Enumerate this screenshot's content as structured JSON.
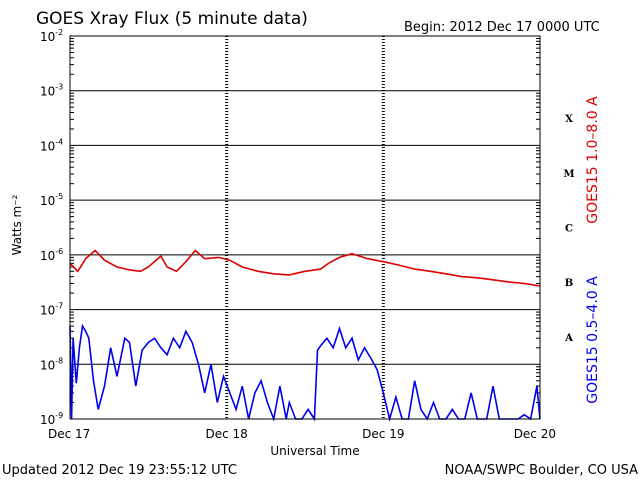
{
  "header": {
    "title": "GOES Xray Flux (5 minute data)",
    "begin": "Begin:  2012 Dec 17 0000 UTC"
  },
  "footer": {
    "updated": "Updated 2012 Dec 19 23:55:12 UTC",
    "credit": "NOAA/SWPC Boulder, CO USA"
  },
  "chart_data": {
    "type": "line",
    "title": "GOES Xray Flux (5 minute data)",
    "xlabel": "Universal Time",
    "ylabel": "Watts m⁻²",
    "yscale": "log",
    "ylim": [
      1e-09,
      0.01
    ],
    "y_ticks": [
      {
        "base": "10",
        "exp": "-2",
        "value": 0.01
      },
      {
        "base": "10",
        "exp": "-3",
        "value": 0.001
      },
      {
        "base": "10",
        "exp": "-4",
        "value": 0.0001
      },
      {
        "base": "10",
        "exp": "-5",
        "value": 1e-05
      },
      {
        "base": "10",
        "exp": "-6",
        "value": 1e-06
      },
      {
        "base": "10",
        "exp": "-7",
        "value": 1e-07
      },
      {
        "base": "10",
        "exp": "-8",
        "value": 1e-08
      },
      {
        "base": "10",
        "exp": "-9",
        "value": 1e-09
      }
    ],
    "x_ticks": [
      "Dec 17",
      "Dec 18",
      "Dec 19",
      "Dec 20"
    ],
    "xlim_days": [
      0,
      3
    ],
    "flare_classes": [
      {
        "label": "X",
        "value": 0.0001
      },
      {
        "label": "M",
        "value": 1e-05
      },
      {
        "label": "C",
        "value": 1e-06
      },
      {
        "label": "B",
        "value": 1e-07
      },
      {
        "label": "A",
        "value": 1e-08
      }
    ],
    "grid": true,
    "series": [
      {
        "name": "GOES15 1.0–8.0 A",
        "color": "#dd0000",
        "points": [
          [
            0.0,
            7e-07
          ],
          [
            0.05,
            5e-07
          ],
          [
            0.1,
            8.5e-07
          ],
          [
            0.16,
            1.2e-06
          ],
          [
            0.22,
            8e-07
          ],
          [
            0.3,
            6e-07
          ],
          [
            0.38,
            5.3e-07
          ],
          [
            0.45,
            5e-07
          ],
          [
            0.5,
            6e-07
          ],
          [
            0.58,
            9.5e-07
          ],
          [
            0.62,
            6e-07
          ],
          [
            0.68,
            5e-07
          ],
          [
            0.74,
            7.5e-07
          ],
          [
            0.8,
            1.2e-06
          ],
          [
            0.86,
            8.5e-07
          ],
          [
            0.95,
            9e-07
          ],
          [
            1.02,
            8e-07
          ],
          [
            1.1,
            6e-07
          ],
          [
            1.2,
            5e-07
          ],
          [
            1.3,
            4.5e-07
          ],
          [
            1.4,
            4.3e-07
          ],
          [
            1.5,
            5e-07
          ],
          [
            1.6,
            5.5e-07
          ],
          [
            1.65,
            7e-07
          ],
          [
            1.72,
            9e-07
          ],
          [
            1.8,
            1.05e-06
          ],
          [
            1.9,
            8.5e-07
          ],
          [
            2.0,
            7.5e-07
          ],
          [
            2.1,
            6.5e-07
          ],
          [
            2.2,
            5.5e-07
          ],
          [
            2.3,
            5e-07
          ],
          [
            2.4,
            4.5e-07
          ],
          [
            2.5,
            4e-07
          ],
          [
            2.6,
            3.8e-07
          ],
          [
            2.7,
            3.5e-07
          ],
          [
            2.8,
            3.2e-07
          ],
          [
            2.9,
            3e-07
          ],
          [
            3.0,
            2.7e-07
          ]
        ]
      },
      {
        "name": "GOES15 0.5–4.0 A",
        "color": "#0000ee",
        "points": [
          [
            0.0,
            5e-08
          ],
          [
            0.01,
            1e-09
          ],
          [
            0.02,
            3e-08
          ],
          [
            0.04,
            4.5e-09
          ],
          [
            0.06,
            2e-08
          ],
          [
            0.08,
            5e-08
          ],
          [
            0.1,
            4e-08
          ],
          [
            0.12,
            3e-08
          ],
          [
            0.15,
            5e-09
          ],
          [
            0.18,
            1.5e-09
          ],
          [
            0.22,
            4e-09
          ],
          [
            0.26,
            2e-08
          ],
          [
            0.3,
            6e-09
          ],
          [
            0.35,
            3e-08
          ],
          [
            0.38,
            2.5e-08
          ],
          [
            0.42,
            4e-09
          ],
          [
            0.46,
            1.8e-08
          ],
          [
            0.5,
            2.5e-08
          ],
          [
            0.54,
            3e-08
          ],
          [
            0.58,
            2e-08
          ],
          [
            0.62,
            1.5e-08
          ],
          [
            0.66,
            3e-08
          ],
          [
            0.7,
            2e-08
          ],
          [
            0.74,
            4e-08
          ],
          [
            0.78,
            2.5e-08
          ],
          [
            0.82,
            1e-08
          ],
          [
            0.86,
            3e-09
          ],
          [
            0.9,
            1e-08
          ],
          [
            0.94,
            2e-09
          ],
          [
            0.98,
            6e-09
          ],
          [
            1.02,
            3e-09
          ],
          [
            1.06,
            1.5e-09
          ],
          [
            1.1,
            4e-09
          ],
          [
            1.14,
            1e-09
          ],
          [
            1.18,
            3e-09
          ],
          [
            1.22,
            5e-09
          ],
          [
            1.26,
            2e-09
          ],
          [
            1.3,
            1e-09
          ],
          [
            1.34,
            4e-09
          ],
          [
            1.38,
            1e-09
          ],
          [
            1.4,
            2e-09
          ],
          [
            1.44,
            1e-09
          ],
          [
            1.48,
            1e-09
          ],
          [
            1.52,
            1.5e-09
          ],
          [
            1.56,
            1e-09
          ],
          [
            1.58,
            1.8e-08
          ],
          [
            1.6,
            2.2e-08
          ],
          [
            1.64,
            3e-08
          ],
          [
            1.68,
            2e-08
          ],
          [
            1.72,
            4.5e-08
          ],
          [
            1.76,
            2e-08
          ],
          [
            1.8,
            3e-08
          ],
          [
            1.84,
            1.2e-08
          ],
          [
            1.88,
            2e-08
          ],
          [
            1.92,
            1.3e-08
          ],
          [
            1.96,
            8e-09
          ],
          [
            2.0,
            3e-09
          ],
          [
            2.04,
            1e-09
          ],
          [
            2.08,
            2.5e-09
          ],
          [
            2.12,
            1e-09
          ],
          [
            2.16,
            1e-09
          ],
          [
            2.2,
            5e-09
          ],
          [
            2.24,
            1.5e-09
          ],
          [
            2.28,
            1e-09
          ],
          [
            2.32,
            2e-09
          ],
          [
            2.36,
            1e-09
          ],
          [
            2.4,
            1e-09
          ],
          [
            2.44,
            1.5e-09
          ],
          [
            2.48,
            1e-09
          ],
          [
            2.52,
            1e-09
          ],
          [
            2.56,
            3e-09
          ],
          [
            2.6,
            1e-09
          ],
          [
            2.66,
            1e-09
          ],
          [
            2.7,
            4e-09
          ],
          [
            2.74,
            1e-09
          ],
          [
            2.8,
            1e-09
          ],
          [
            2.86,
            1e-09
          ],
          [
            2.9,
            1.2e-09
          ],
          [
            2.94,
            1e-09
          ],
          [
            2.98,
            4e-09
          ],
          [
            3.0,
            1e-09
          ]
        ]
      }
    ]
  }
}
